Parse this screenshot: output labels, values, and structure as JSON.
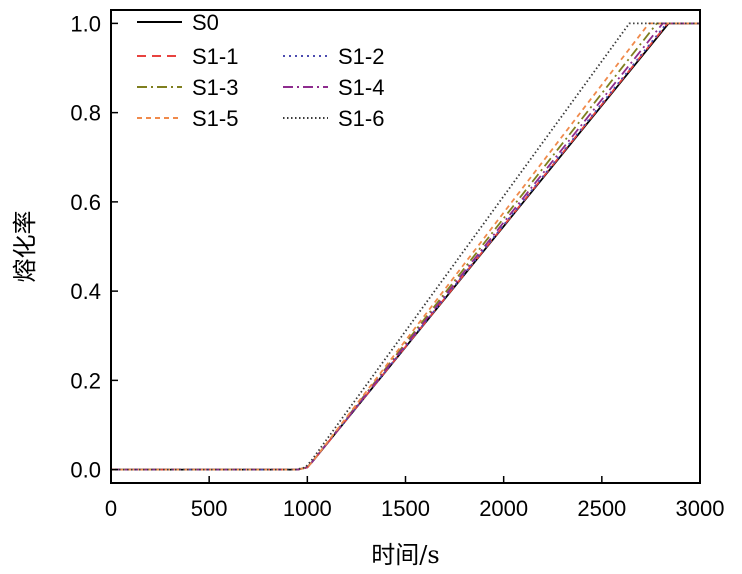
{
  "chart_data": {
    "type": "line",
    "xlabel": "时间/s",
    "ylabel": "熔化率",
    "xlim": [
      0,
      3000
    ],
    "ylim": [
      -0.03,
      1.03
    ],
    "xticks": [
      0,
      500,
      1000,
      1500,
      2000,
      2500,
      3000
    ],
    "xtick_labels": [
      "0",
      "500",
      "1000",
      "1500",
      "2000",
      "2500",
      "3000"
    ],
    "yticks": [
      0.0,
      0.2,
      0.4,
      0.6,
      0.8,
      1.0
    ],
    "ytick_labels": [
      "0.0",
      "0.2",
      "0.4",
      "0.6",
      "0.8",
      "1.0"
    ],
    "grid": false,
    "legend_position": "top-left",
    "series": [
      {
        "name": "S0",
        "color": "#000000",
        "dash": "solid",
        "x": [
          0,
          950,
          1000,
          1030,
          2840,
          3000
        ],
        "y": [
          0,
          0,
          0.005,
          0.02,
          1.0,
          1.0
        ]
      },
      {
        "name": "S1-1",
        "color": "#e8423f",
        "dash": "dashed",
        "x": [
          0,
          950,
          1000,
          1030,
          2835,
          3000
        ],
        "y": [
          0,
          0,
          0.005,
          0.02,
          1.0,
          1.0
        ]
      },
      {
        "name": "S1-2",
        "color": "#4b4bb0",
        "dash": "dotted",
        "x": [
          0,
          950,
          1000,
          1030,
          2830,
          3000
        ],
        "y": [
          0,
          0,
          0.005,
          0.02,
          1.0,
          1.0
        ]
      },
      {
        "name": "S1-3",
        "color": "#7f7f1f",
        "dash": "dashdot",
        "x": [
          0,
          950,
          1000,
          1030,
          2780,
          3000
        ],
        "y": [
          0,
          0,
          0.005,
          0.02,
          1.0,
          1.0
        ]
      },
      {
        "name": "S1-4",
        "color": "#8e2c8e",
        "dash": "dashdot",
        "x": [
          0,
          950,
          1000,
          1030,
          2810,
          3000
        ],
        "y": [
          0,
          0,
          0.005,
          0.02,
          1.0,
          1.0
        ]
      },
      {
        "name": "S1-5",
        "color": "#f08a4b",
        "dash": "shortdash",
        "x": [
          0,
          950,
          1000,
          1030,
          2740,
          3000
        ],
        "y": [
          0,
          0,
          0.005,
          0.02,
          1.0,
          1.0
        ]
      },
      {
        "name": "S1-6",
        "color": "#3a3a3a",
        "dash": "finedot",
        "x": [
          0,
          940,
          990,
          1020,
          2640,
          3000
        ],
        "y": [
          0,
          0,
          0.005,
          0.02,
          1.0,
          1.0
        ]
      }
    ]
  }
}
